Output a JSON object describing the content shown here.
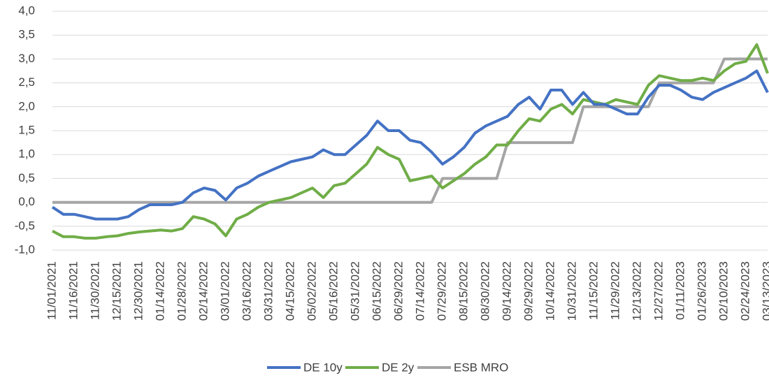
{
  "chart_data": {
    "type": "line",
    "categories": [
      "11/01/2021",
      null,
      "11/16/2021",
      null,
      "11/30/2021",
      null,
      "12/15/2021",
      null,
      "12/30/2021",
      null,
      "01/14/2022",
      null,
      "01/28/2022",
      null,
      "02/14/2022",
      null,
      "03/01/2022",
      null,
      "03/16/2022",
      null,
      "03/31/2022",
      null,
      "04/15/2022",
      null,
      "05/02/2022",
      null,
      "05/16/2022",
      null,
      "05/31/2022",
      null,
      "06/15/2022",
      null,
      "06/29/2022",
      null,
      "07/14/2022",
      null,
      "07/29/2022",
      null,
      "08/15/2022",
      null,
      "08/30/2022",
      null,
      "09/14/2022",
      null,
      "09/29/2022",
      null,
      "10/14/2022",
      null,
      "10/31/2022",
      null,
      "11/15/2022",
      null,
      "11/29/2022",
      null,
      "12/13/2022",
      null,
      "12/27/2022",
      null,
      "01/11/2023",
      null,
      "01/26/2023",
      null,
      "02/10/2023",
      null,
      "02/24/2023",
      null,
      "03/13/2023"
    ],
    "series": [
      {
        "name": "DE 10y",
        "color": "#4472c4",
        "values": [
          -0.1,
          -0.25,
          -0.25,
          -0.3,
          -0.35,
          -0.35,
          -0.35,
          -0.3,
          -0.15,
          -0.05,
          -0.05,
          -0.05,
          0.0,
          0.2,
          0.3,
          0.25,
          0.05,
          0.3,
          0.4,
          0.55,
          0.65,
          0.75,
          0.85,
          0.9,
          0.95,
          1.1,
          1.0,
          1.0,
          1.2,
          1.4,
          1.7,
          1.5,
          1.5,
          1.3,
          1.25,
          1.05,
          0.8,
          0.95,
          1.15,
          1.45,
          1.6,
          1.7,
          1.8,
          2.05,
          2.2,
          1.95,
          2.35,
          2.35,
          2.05,
          2.3,
          2.05,
          2.05,
          1.95,
          1.85,
          1.85,
          2.2,
          2.45,
          2.45,
          2.35,
          2.2,
          2.15,
          2.3,
          2.4,
          2.5,
          2.6,
          2.75,
          2.3
        ]
      },
      {
        "name": "DE 2y",
        "color": "#70ad47",
        "values": [
          -0.6,
          -0.72,
          -0.72,
          -0.75,
          -0.75,
          -0.72,
          -0.7,
          -0.65,
          -0.62,
          -0.6,
          -0.58,
          -0.6,
          -0.55,
          -0.3,
          -0.35,
          -0.45,
          -0.7,
          -0.35,
          -0.25,
          -0.1,
          0.0,
          0.05,
          0.1,
          0.2,
          0.3,
          0.1,
          0.35,
          0.4,
          0.6,
          0.8,
          1.15,
          1.0,
          0.9,
          0.45,
          0.5,
          0.55,
          0.3,
          0.45,
          0.6,
          0.8,
          0.95,
          1.2,
          1.2,
          1.5,
          1.75,
          1.7,
          1.95,
          2.05,
          1.85,
          2.15,
          2.1,
          2.05,
          2.15,
          2.1,
          2.05,
          2.45,
          2.65,
          2.6,
          2.55,
          2.55,
          2.6,
          2.55,
          2.75,
          2.9,
          2.95,
          3.3,
          2.7
        ]
      },
      {
        "name": "ESB MRO",
        "color": "#a5a5a5",
        "values": [
          0,
          0,
          0,
          0,
          0,
          0,
          0,
          0,
          0,
          0,
          0,
          0,
          0,
          0,
          0,
          0,
          0,
          0,
          0,
          0,
          0,
          0,
          0,
          0,
          0,
          0,
          0,
          0,
          0,
          0,
          0,
          0,
          0,
          0,
          0,
          0,
          0.5,
          0.5,
          0.5,
          0.5,
          0.5,
          0.5,
          1.25,
          1.25,
          1.25,
          1.25,
          1.25,
          1.25,
          1.25,
          2.0,
          2.0,
          2.0,
          2.0,
          2.0,
          2.0,
          2.0,
          2.5,
          2.5,
          2.5,
          2.5,
          2.5,
          2.5,
          3.0,
          3.0,
          3.0,
          3.0,
          3.0
        ]
      }
    ],
    "ylim": [
      -1.0,
      4.0
    ],
    "yticks": [
      {
        "value": -1.0,
        "label": "-1,0"
      },
      {
        "value": -0.5,
        "label": "-0,5"
      },
      {
        "value": 0.0,
        "label": "0,0"
      },
      {
        "value": 0.5,
        "label": "0,5"
      },
      {
        "value": 1.0,
        "label": "1,0"
      },
      {
        "value": 1.5,
        "label": "1,5"
      },
      {
        "value": 2.0,
        "label": "2,0"
      },
      {
        "value": 2.5,
        "label": "2,5"
      },
      {
        "value": 3.0,
        "label": "3,0"
      },
      {
        "value": 3.5,
        "label": "3,5"
      },
      {
        "value": 4.0,
        "label": "4,0"
      }
    ],
    "grid": true,
    "legend": "bottom"
  }
}
